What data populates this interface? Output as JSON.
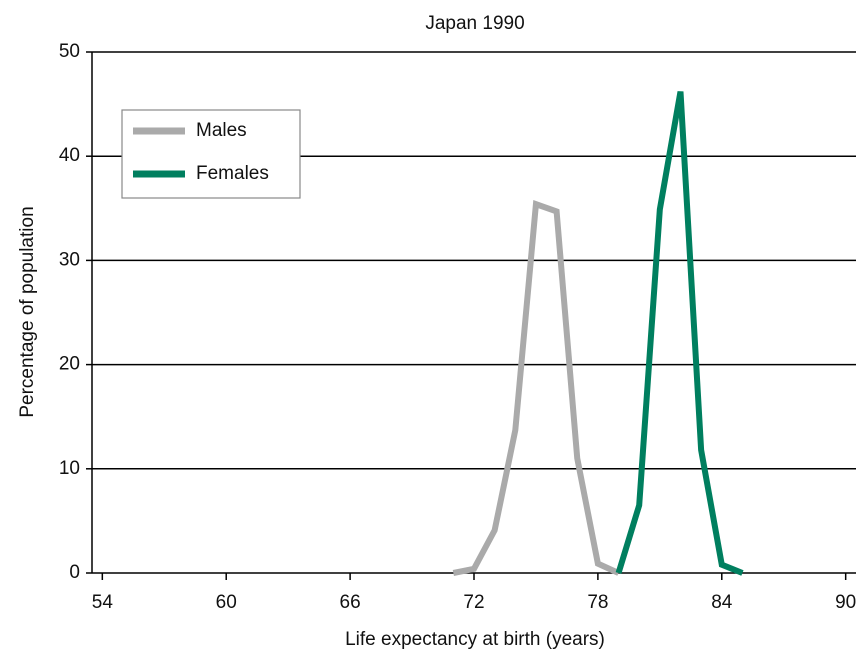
{
  "chart_data": {
    "type": "line",
    "title": "Japan 1990",
    "x_label": "Life expectancy at birth (years)",
    "y_label": "Percentage of population",
    "x": [
      71,
      72,
      73,
      74,
      75,
      76,
      77,
      78,
      79,
      80,
      81,
      82,
      83,
      84,
      85
    ],
    "series": [
      {
        "name": "Males",
        "color": "#aaaaaa",
        "values": [
          0,
          0.4,
          4.1,
          13.7,
          35.4,
          34.7,
          11,
          0.9,
          0,
          null,
          null,
          null,
          null,
          null,
          null
        ]
      },
      {
        "name": "Females",
        "color": "#007f5f",
        "values": [
          null,
          null,
          null,
          null,
          null,
          null,
          null,
          null,
          0,
          6.5,
          34.9,
          46.2,
          11.8,
          0.8,
          0
        ]
      }
    ],
    "xlim": [
      53.5,
      90.5
    ],
    "xticks": [
      54,
      60,
      66,
      72,
      78,
      84,
      90
    ],
    "ylim": [
      0,
      50
    ],
    "yticks": [
      0,
      10,
      20,
      30,
      40,
      50
    ],
    "grid": true,
    "legend": "upper left"
  }
}
